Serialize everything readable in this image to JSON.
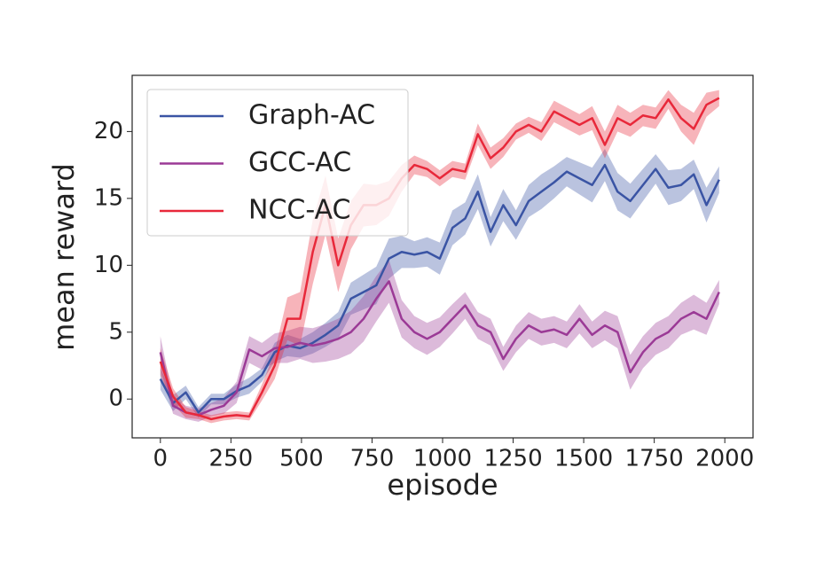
{
  "chart_data": {
    "type": "line",
    "xlabel": "episode",
    "ylabel": "mean reward",
    "x": [
      0,
      45,
      90,
      135,
      180,
      225,
      270,
      315,
      360,
      405,
      450,
      495,
      540,
      585,
      630,
      675,
      720,
      765,
      810,
      855,
      900,
      945,
      990,
      1035,
      1080,
      1125,
      1170,
      1215,
      1260,
      1305,
      1350,
      1395,
      1440,
      1485,
      1530,
      1575,
      1620,
      1665,
      1710,
      1755,
      1800,
      1845,
      1890,
      1935,
      1980
    ],
    "series": [
      {
        "name": "Graph-AC",
        "color": "#3a54a4",
        "values": [
          1.5,
          -0.3,
          0.5,
          -1.0,
          0,
          0,
          0.6,
          1.0,
          1.8,
          3.5,
          4.0,
          3.8,
          4.2,
          4.8,
          5.5,
          7.5,
          8.0,
          8.5,
          10.5,
          11.0,
          10.8,
          11.0,
          10.5,
          12.8,
          13.5,
          15.5,
          12.5,
          14.5,
          13.0,
          14.8,
          15.5,
          16.2,
          17.0,
          16.5,
          16.0,
          17.5,
          15.5,
          14.8,
          16.0,
          17.2,
          15.8,
          16.0,
          16.8,
          14.5,
          16.4
        ],
        "errors": [
          0.8,
          0.6,
          0.5,
          0.4,
          0.4,
          0.4,
          0.5,
          0.6,
          0.5,
          0.7,
          0.8,
          0.7,
          0.8,
          0.9,
          1.0,
          1.2,
          1.3,
          1.4,
          1.5,
          1.2,
          1.0,
          1.1,
          1.2,
          1.3,
          1.2,
          1.3,
          1.1,
          1.2,
          1.1,
          1.2,
          1.3,
          1.2,
          1.1,
          1.2,
          1.3,
          1.2,
          1.4,
          1.3,
          1.2,
          1.1,
          1.3,
          1.2,
          1.1,
          1.3,
          1.0
        ]
      },
      {
        "name": "GCC-AC",
        "color": "#9b3a96",
        "values": [
          3.5,
          -0.5,
          -1.0,
          -1.2,
          -0.8,
          -0.5,
          0.5,
          3.7,
          3.2,
          3.8,
          3.9,
          4.2,
          4.0,
          4.2,
          4.5,
          5.0,
          6.0,
          7.5,
          8.8,
          6.0,
          5.0,
          4.5,
          5.0,
          6.0,
          7.0,
          5.5,
          5.0,
          3.0,
          4.5,
          5.5,
          5.0,
          5.2,
          4.8,
          6.0,
          4.8,
          5.5,
          5.0,
          2.0,
          3.5,
          4.5,
          5.0,
          6.0,
          6.5,
          6.0,
          8.0
        ],
        "errors": [
          1.2,
          0.6,
          0.5,
          0.5,
          0.5,
          0.6,
          0.8,
          1.0,
          1.0,
          1.1,
          1.2,
          1.2,
          1.3,
          1.4,
          1.5,
          1.6,
          1.7,
          1.7,
          1.6,
          1.4,
          1.2,
          1.2,
          1.1,
          1.1,
          1.0,
          1.0,
          1.0,
          0.9,
          1.0,
          1.0,
          1.0,
          1.0,
          1.0,
          1.1,
          1.0,
          1.1,
          1.2,
          1.3,
          1.2,
          1.2,
          1.2,
          1.2,
          1.3,
          1.2,
          0.9
        ]
      },
      {
        "name": "NCC-AC",
        "color": "#e8283a",
        "values": [
          2.8,
          0.2,
          -1.0,
          -1.2,
          -1.5,
          -1.3,
          -1.2,
          -1.3,
          0.5,
          2.5,
          6.0,
          6.0,
          11.0,
          14.5,
          10.0,
          13.0,
          14.5,
          14.5,
          15.0,
          16.5,
          17.5,
          17.2,
          16.5,
          17.2,
          17.0,
          19.8,
          18.0,
          18.8,
          20.0,
          20.5,
          20.0,
          21.5,
          21.0,
          20.5,
          21.0,
          19.0,
          21.0,
          20.5,
          21.2,
          21.0,
          22.4,
          21.0,
          20.2,
          22.0,
          22.5
        ],
        "errors": [
          1.0,
          0.6,
          0.4,
          0.3,
          0.3,
          0.3,
          0.3,
          0.3,
          0.6,
          1.0,
          1.6,
          2.0,
          2.4,
          2.2,
          2.0,
          1.8,
          1.6,
          1.5,
          1.3,
          1.0,
          0.7,
          0.6,
          0.6,
          0.6,
          0.6,
          0.8,
          0.8,
          0.7,
          0.6,
          0.6,
          0.7,
          0.8,
          0.8,
          0.8,
          0.9,
          1.0,
          1.0,
          0.9,
          0.8,
          0.8,
          0.7,
          1.0,
          1.2,
          0.9,
          0.6
        ]
      }
    ],
    "xlim": [
      -100,
      2100
    ],
    "xticks": [
      0,
      250,
      500,
      750,
      1000,
      1250,
      1500,
      1750,
      2000
    ],
    "ylim": [
      -2.9,
      24.2
    ],
    "yticks": [
      0,
      5,
      10,
      15,
      20
    ],
    "legend": "upper left"
  }
}
